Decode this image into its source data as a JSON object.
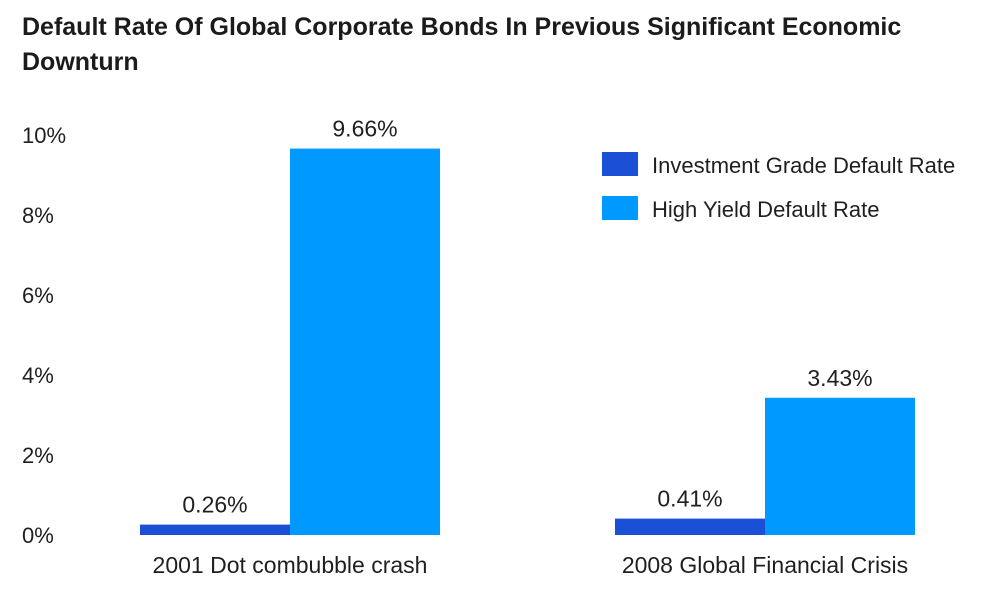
{
  "chart_data": {
    "type": "bar",
    "title": "Default Rate Of Global Corporate Bonds In Previous Significant Economic Downturn",
    "xlabel": "",
    "ylabel": "",
    "ylim": [
      0,
      10
    ],
    "yticks": [
      "0%",
      "2%",
      "4%",
      "6%",
      "8%",
      "10%"
    ],
    "ytick_values": [
      0,
      2,
      4,
      6,
      8,
      10
    ],
    "categories": [
      "2001 Dot combubble crash",
      "2008 Global Financial Crisis"
    ],
    "series": [
      {
        "name": "Investment Grade Default Rate",
        "color": "#1a4fd6",
        "values": [
          0.26,
          0.41
        ],
        "labels": [
          "0.26%",
          "0.41%"
        ]
      },
      {
        "name": "High Yield Default Rate",
        "color": "#0099ff",
        "values": [
          9.66,
          3.43
        ],
        "labels": [
          "9.66%",
          "3.43%"
        ]
      }
    ],
    "legend_position": "top-right",
    "grid": false
  }
}
